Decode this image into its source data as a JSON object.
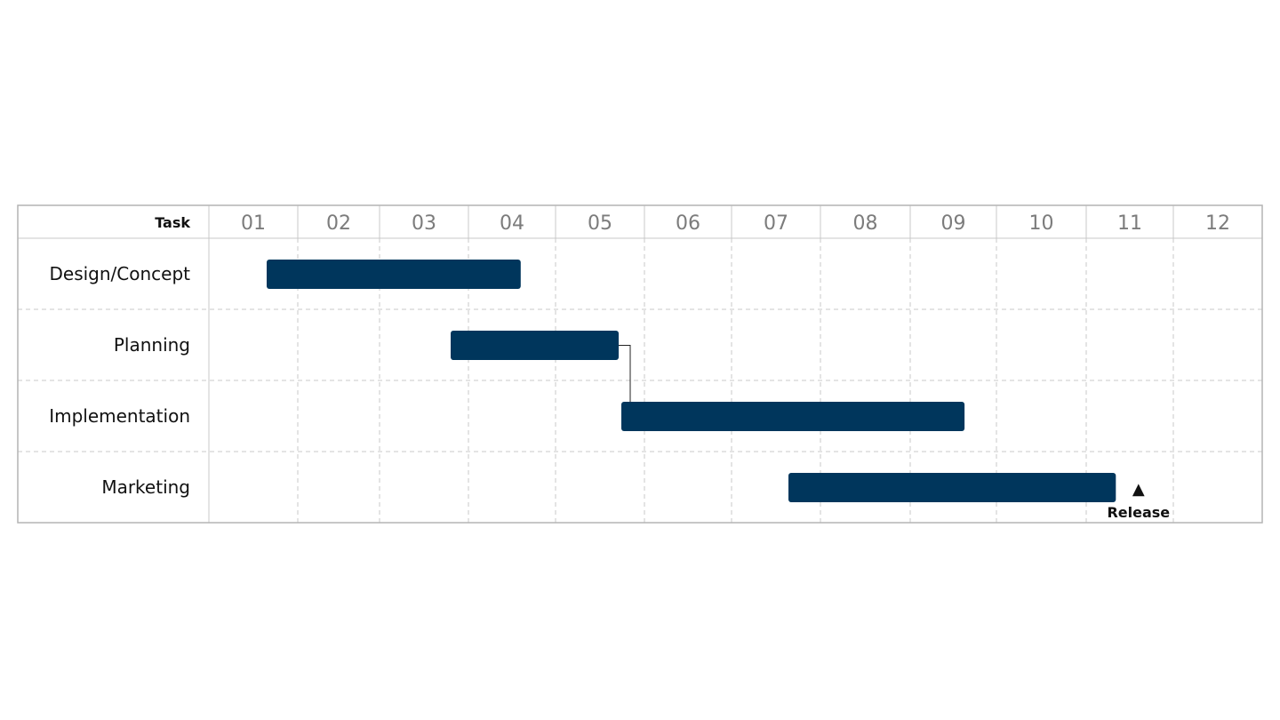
{
  "chart_data": {
    "type": "gantt",
    "task_header": "Task",
    "columns": [
      "01",
      "02",
      "03",
      "04",
      "05",
      "06",
      "07",
      "08",
      "09",
      "10",
      "11",
      "12"
    ],
    "tasks": [
      {
        "name": "Design/Concept",
        "start": 0.65,
        "end": 3.6
      },
      {
        "name": "Planning",
        "start": 2.8,
        "end": 4.71
      },
      {
        "name": "Implementation",
        "start": 4.74,
        "end": 8.63
      },
      {
        "name": "Marketing",
        "start": 6.64,
        "end": 10.34
      }
    ],
    "dependencies": [
      {
        "from": "Planning",
        "to": "Implementation"
      }
    ],
    "milestones": [
      {
        "label": "Release",
        "task": "Marketing",
        "at": 10.6,
        "symbol": "▲"
      }
    ],
    "colors": {
      "bar": "#00365c",
      "grid": "#c8c8c8",
      "frame": "#b4b4b4",
      "column_label": "#7c7c7c"
    },
    "grid": true
  }
}
